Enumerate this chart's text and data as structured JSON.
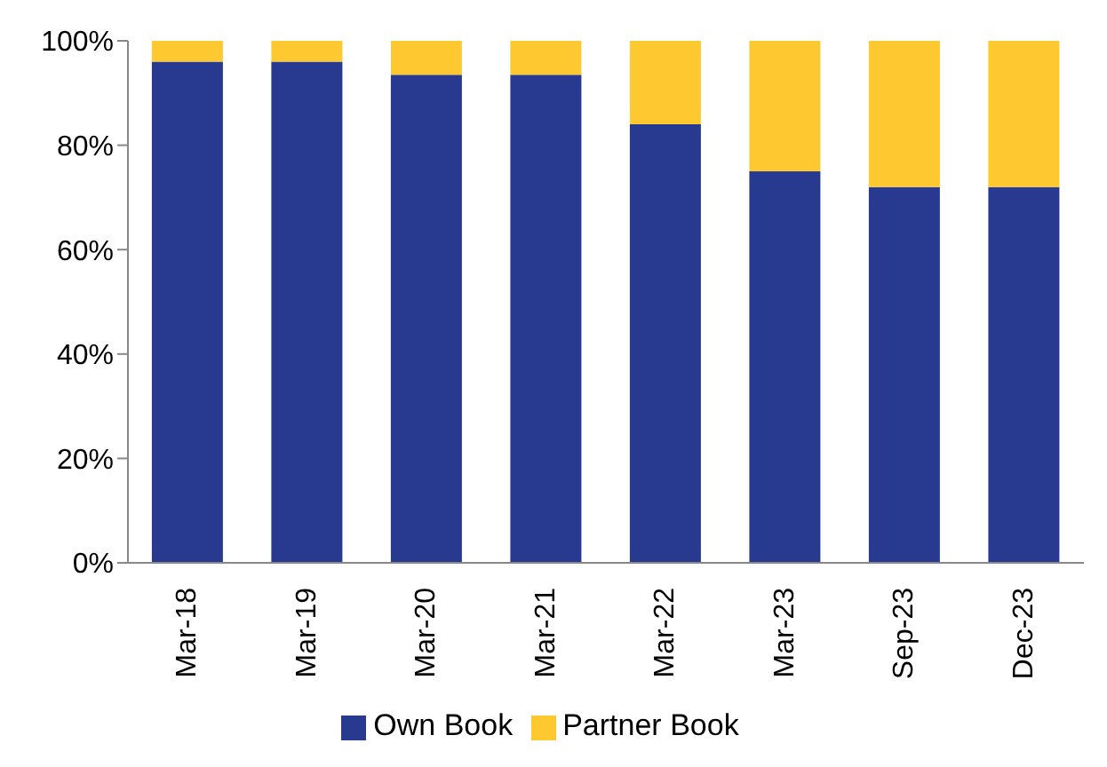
{
  "chart_data": {
    "type": "bar",
    "stacked": true,
    "categories": [
      "Mar-18",
      "Mar-19",
      "Mar-20",
      "Mar-21",
      "Mar-22",
      "Mar-23",
      "Sep-23",
      "Dec-23"
    ],
    "series": [
      {
        "name": "Own Book",
        "color": "#283a8f",
        "values": [
          96,
          96,
          93.5,
          93.5,
          84,
          75,
          72,
          72
        ]
      },
      {
        "name": "Partner Book",
        "color": "#fec831",
        "values": [
          4,
          4,
          6.5,
          6.5,
          16,
          25,
          28,
          28
        ]
      }
    ],
    "ylim": [
      0,
      100
    ],
    "yticks": [
      {
        "value": 0,
        "label": "0%"
      },
      {
        "value": 20,
        "label": "20%"
      },
      {
        "value": 40,
        "label": "40%"
      },
      {
        "value": 60,
        "label": "60%"
      },
      {
        "value": 80,
        "label": "80%"
      },
      {
        "value": 100,
        "label": "100%"
      }
    ],
    "grid": false,
    "legend": "bottom"
  }
}
